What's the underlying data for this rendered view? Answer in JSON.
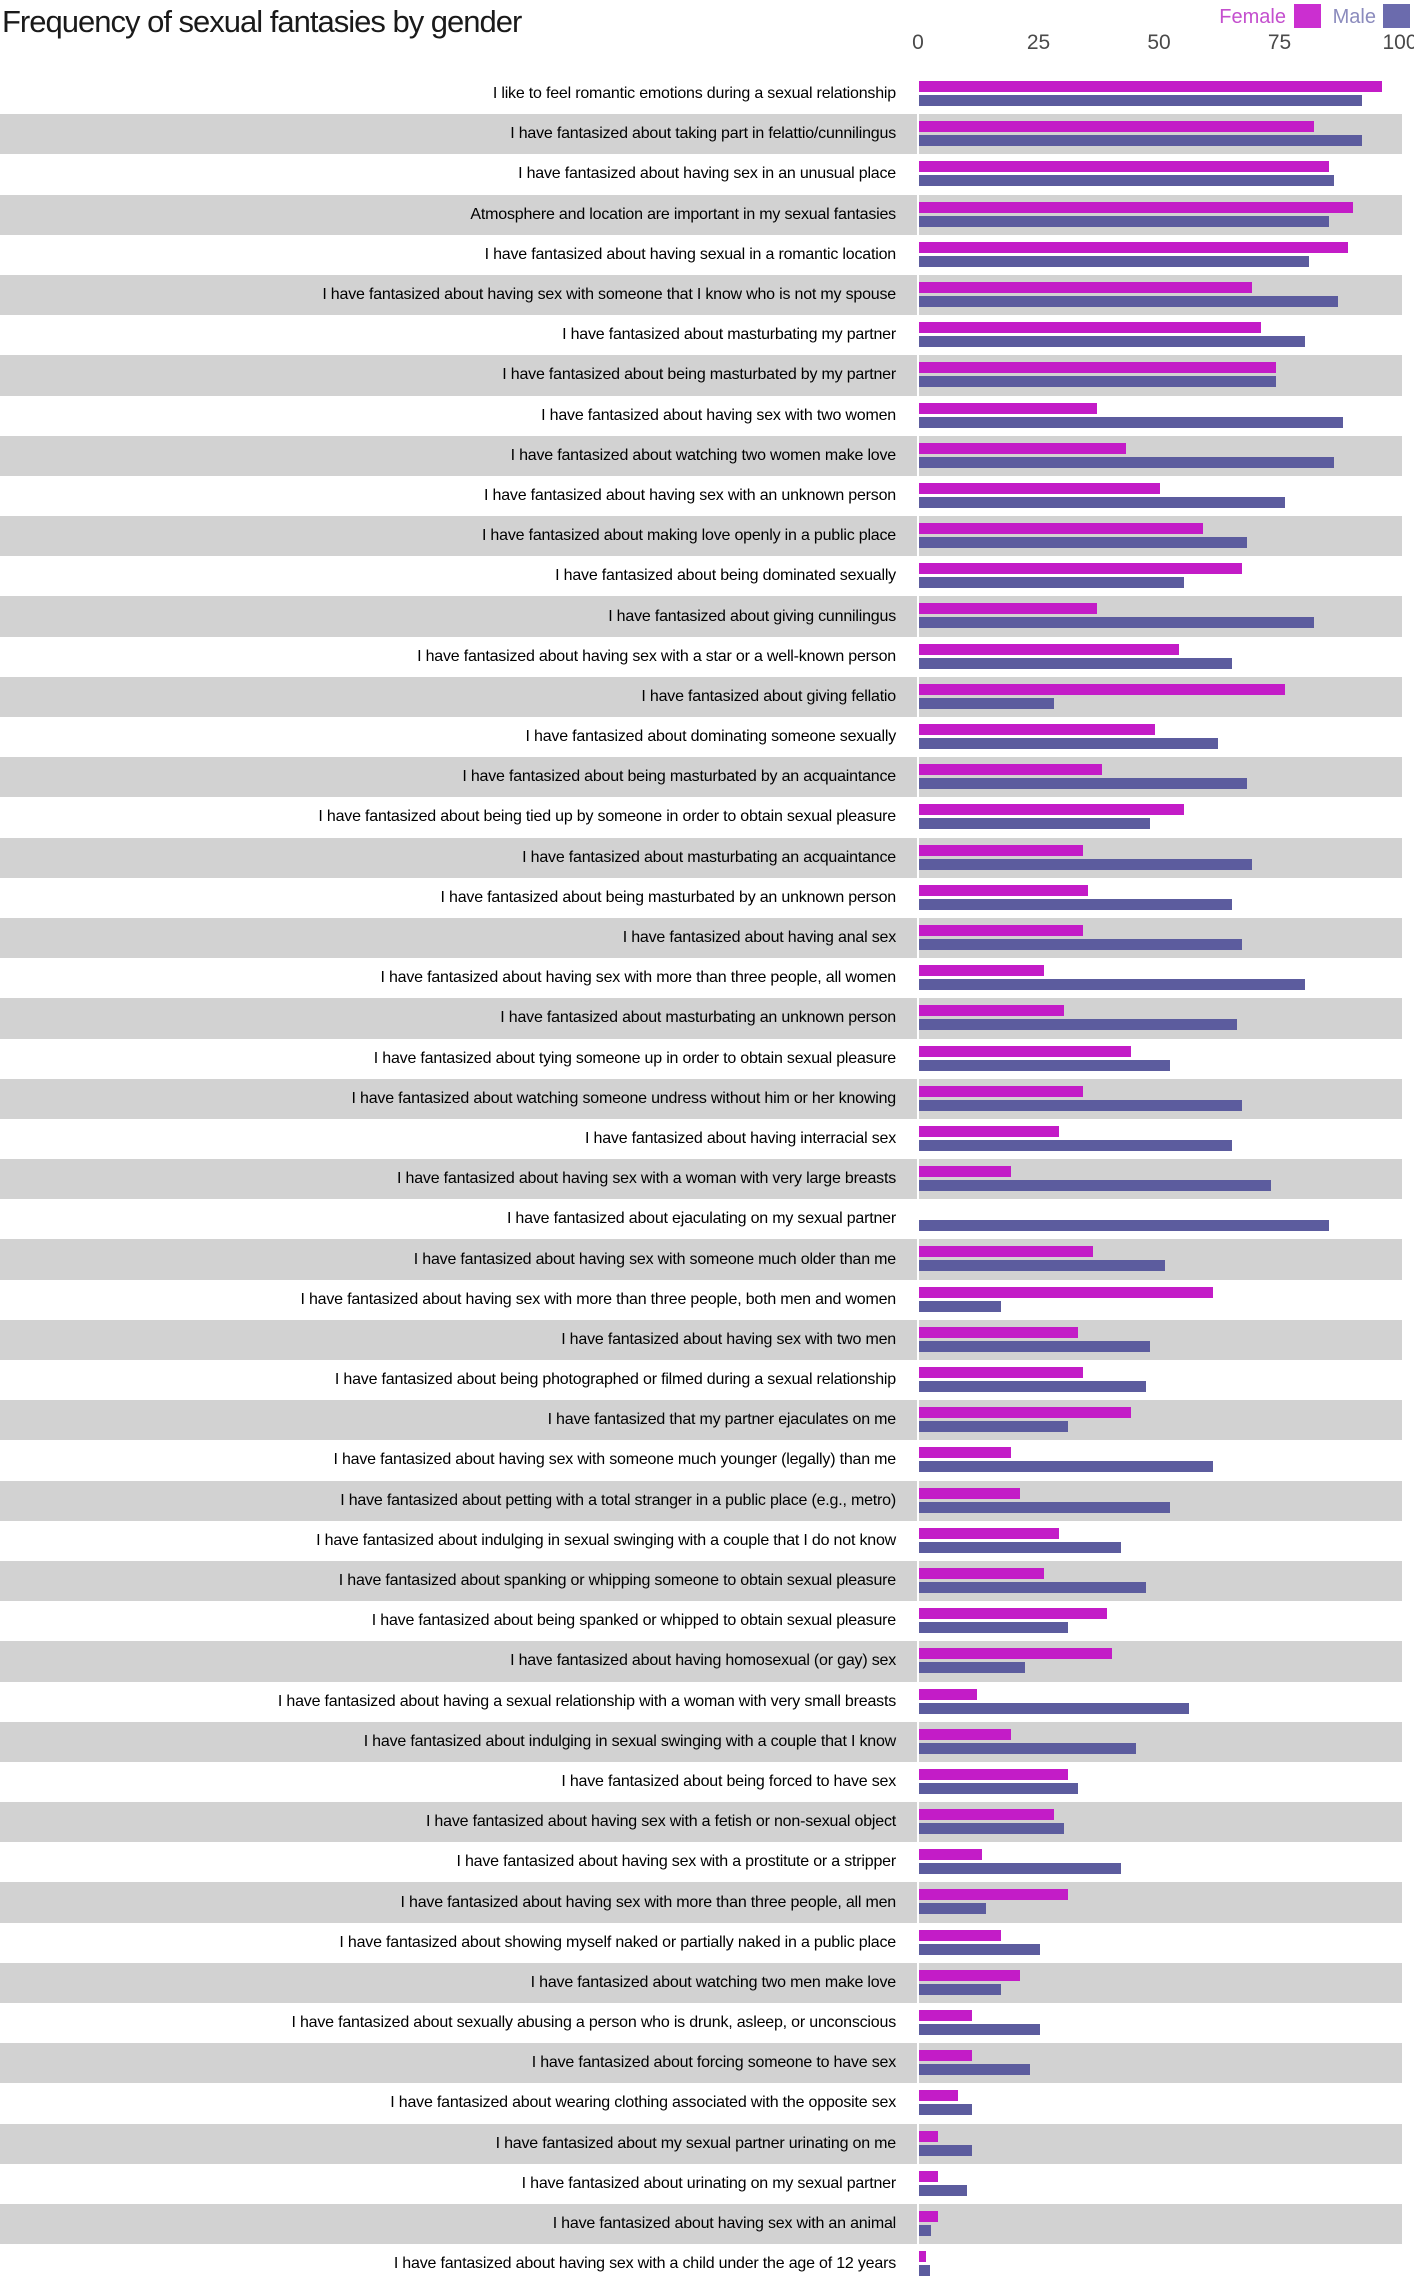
{
  "page": {
    "title": "Frequency of sexual fantasies by gender"
  },
  "legend": {
    "female": {
      "label": "Female",
      "text_color": "#c44fce",
      "swatch_color": "#cb2fd0"
    },
    "male": {
      "label": "Male",
      "text_color": "#8b8bbd",
      "swatch_color": "#6b6bad"
    }
  },
  "chart_data": {
    "type": "bar",
    "orientation": "horizontal",
    "title": "Frequency of sexual fantasies by gender",
    "xlabel": "",
    "ylabel": "",
    "x_axis": {
      "range": [
        0,
        100
      ],
      "ticks": [
        0,
        25,
        50,
        75,
        100
      ],
      "position": "top",
      "grid": false
    },
    "legend_position": "top-right",
    "series_names": [
      "Female",
      "Male"
    ],
    "colors": {
      "female_bar": "#c31cc7",
      "male_bar": "#5c5c9e",
      "row_stripe": "#d2d2d2"
    },
    "note": "values are percentages; female value missing for the 'ejaculating on my sexual partner' item",
    "rows": [
      {
        "label": "I like to feel romantic emotions during a sexual relationship",
        "female": 96,
        "male": 92
      },
      {
        "label": "I have fantasized about taking part in felattio/cunnilingus",
        "female": 82,
        "male": 92
      },
      {
        "label": "I have fantasized about having sex in an unusual place",
        "female": 85,
        "male": 86
      },
      {
        "label": "Atmosphere and location are important in my sexual fantasies",
        "female": 90,
        "male": 85
      },
      {
        "label": "I have fantasized about having sexual in a romantic location",
        "female": 89,
        "male": 81
      },
      {
        "label": "I have fantasized about having sex with someone that I know who is not my spouse",
        "female": 69,
        "male": 87
      },
      {
        "label": "I have fantasized about masturbating my partner",
        "female": 71,
        "male": 80
      },
      {
        "label": "I have fantasized about being masturbated by my partner",
        "female": 74,
        "male": 74
      },
      {
        "label": "I have fantasized about having sex with two women",
        "female": 37,
        "male": 88
      },
      {
        "label": "I have fantasized about watching two women make love",
        "female": 43,
        "male": 86
      },
      {
        "label": "I have fantasized about having sex with an unknown person",
        "female": 50,
        "male": 76
      },
      {
        "label": "I have fantasized about making love openly in a public place",
        "female": 59,
        "male": 68
      },
      {
        "label": "I have fantasized about being dominated sexually",
        "female": 67,
        "male": 55
      },
      {
        "label": "I have fantasized about giving cunnilingus",
        "female": 37,
        "male": 82
      },
      {
        "label": "I have fantasized about having sex with a star or a well-known person",
        "female": 54,
        "male": 65
      },
      {
        "label": "I have fantasized about giving fellatio",
        "female": 76,
        "male": 28
      },
      {
        "label": "I have fantasized about dominating someone sexually",
        "female": 49,
        "male": 62
      },
      {
        "label": "I have fantasized about being masturbated by an acquaintance",
        "female": 38,
        "male": 68
      },
      {
        "label": "I have fantasized about being tied up by someone in order to obtain sexual pleasure",
        "female": 55,
        "male": 48
      },
      {
        "label": "I have fantasized about masturbating an acquaintance",
        "female": 34,
        "male": 69
      },
      {
        "label": "I have fantasized about being masturbated by an unknown person",
        "female": 35,
        "male": 65
      },
      {
        "label": "I have fantasized about having anal sex",
        "female": 34,
        "male": 67
      },
      {
        "label": "I have fantasized about having sex with more than three people, all women",
        "female": 26,
        "male": 80
      },
      {
        "label": "I have fantasized about masturbating an unknown person",
        "female": 30,
        "male": 66
      },
      {
        "label": "I have fantasized about tying someone up in order to obtain sexual pleasure",
        "female": 44,
        "male": 52
      },
      {
        "label": "I have fantasized about watching someone undress without him or her knowing",
        "female": 34,
        "male": 67
      },
      {
        "label": "I have fantasized about having interracial sex",
        "female": 29,
        "male": 65
      },
      {
        "label": "I have fantasized about having sex with a woman with very large breasts",
        "female": 19,
        "male": 73
      },
      {
        "label": "I have fantasized about ejaculating on my sexual partner",
        "female": null,
        "male": 85
      },
      {
        "label": "I have fantasized about having sex with someone much older than me",
        "female": 36,
        "male": 51
      },
      {
        "label": "I have fantasized about having sex with more than three people, both men and women",
        "female": 61,
        "male": 17
      },
      {
        "label": "I have fantasized about having sex with two men",
        "female": 33,
        "male": 48
      },
      {
        "label": "I have fantasized about being photographed or filmed during a sexual relationship",
        "female": 34,
        "male": 47
      },
      {
        "label": "I have fantasized that my partner ejaculates on me",
        "female": 44,
        "male": 31
      },
      {
        "label": "I have fantasized about having sex with someone much younger (legally) than me",
        "female": 19,
        "male": 61
      },
      {
        "label": "I have fantasized about petting with a total stranger in a public place (e.g., metro)",
        "female": 21,
        "male": 52
      },
      {
        "label": "I have fantasized about indulging in sexual swinging with a couple that I do not know",
        "female": 29,
        "male": 42
      },
      {
        "label": "I have fantasized about spanking or whipping someone to obtain sexual pleasure",
        "female": 26,
        "male": 47
      },
      {
        "label": "I have fantasized about being spanked or whipped to obtain sexual pleasure",
        "female": 39,
        "male": 31
      },
      {
        "label": "I have fantasized about having homosexual (or gay) sex",
        "female": 40,
        "male": 22
      },
      {
        "label": "I have fantasized about having a sexual relationship with a woman with very small breasts",
        "female": 12,
        "male": 56
      },
      {
        "label": "I have fantasized about indulging in sexual swinging with a couple that I know",
        "female": 19,
        "male": 45
      },
      {
        "label": "I have fantasized about being forced to have sex",
        "female": 31,
        "male": 33
      },
      {
        "label": "I have fantasized about having sex with a fetish or non-sexual object",
        "female": 28,
        "male": 30
      },
      {
        "label": "I have fantasized about having sex with a prostitute or a stripper",
        "female": 13,
        "male": 42
      },
      {
        "label": "I have fantasized about having sex with more than three people, all men",
        "female": 31,
        "male": 14
      },
      {
        "label": "I have fantasized about showing myself naked or partially naked in a public place",
        "female": 17,
        "male": 25
      },
      {
        "label": "I have fantasized about watching two men make love",
        "female": 21,
        "male": 17
      },
      {
        "label": "I have fantasized about sexually abusing a person who is drunk, asleep, or unconscious",
        "female": 11,
        "male": 25
      },
      {
        "label": "I have fantasized about forcing someone to have sex",
        "female": 11,
        "male": 23
      },
      {
        "label": "I have fantasized about wearing clothing associated with the opposite sex",
        "female": 8,
        "male": 11
      },
      {
        "label": "I have fantasized about my sexual partner urinating on me",
        "female": 4,
        "male": 11
      },
      {
        "label": "I have fantasized about urinating on my sexual partner",
        "female": 4,
        "male": 10
      },
      {
        "label": "I have fantasized about having sex with an animal",
        "female": 4,
        "male": 2.5
      },
      {
        "label": "I have fantasized about having sex with a child under the age of 12 years",
        "female": 1.5,
        "male": 2.3
      }
    ]
  }
}
